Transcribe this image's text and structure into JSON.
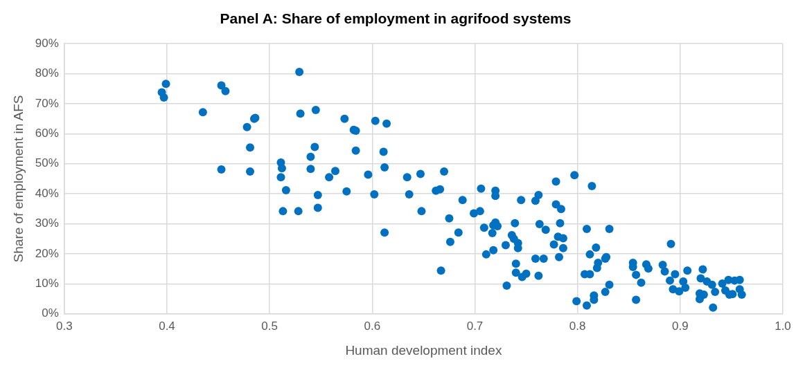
{
  "chart_data": {
    "type": "scatter",
    "title": "Panel A: Share of employment in agrifood systems",
    "xlabel": "Human development index",
    "ylabel": "Share of employment in AFS",
    "xlim": [
      0.3,
      1.0
    ],
    "xticks": [
      0.3,
      0.4,
      0.5,
      0.6,
      0.7,
      0.8,
      0.9,
      {
        "value": 1.0,
        "label": "1.0"
      }
    ],
    "ylim": [
      0,
      90
    ],
    "yticks": [
      {
        "value": 0,
        "label": "0%"
      },
      {
        "value": 10,
        "label": "10%"
      },
      {
        "value": 20,
        "label": "20%"
      },
      {
        "value": 30,
        "label": "30%"
      },
      {
        "value": 40,
        "label": "40%"
      },
      {
        "value": 50,
        "label": "50%"
      },
      {
        "value": 60,
        "label": "60%"
      },
      {
        "value": 70,
        "label": "70%"
      },
      {
        "value": 80,
        "label": "80%"
      },
      {
        "value": 90,
        "label": "90%"
      }
    ],
    "grid": true,
    "marker": "circle",
    "series": [
      {
        "color": "#0070c0",
        "x": [
          0.399,
          0.395,
          0.397,
          0.435,
          0.453,
          0.457,
          0.478,
          0.485,
          0.486,
          0.481,
          0.453,
          0.481,
          0.529,
          0.53,
          0.545,
          0.573,
          0.582,
          0.584,
          0.584,
          0.544,
          0.54,
          0.54,
          0.511,
          0.512,
          0.511,
          0.516,
          0.513,
          0.528,
          0.547,
          0.547,
          0.558,
          0.564,
          0.575,
          0.603,
          0.614,
          0.611,
          0.612,
          0.596,
          0.602,
          0.612,
          0.634,
          0.647,
          0.67,
          0.636,
          0.662,
          0.666,
          0.648,
          0.688,
          0.675,
          0.684,
          0.676,
          0.667,
          0.706,
          0.72,
          0.72,
          0.699,
          0.705,
          0.709,
          0.718,
          0.72,
          0.722,
          0.717,
          0.711,
          0.718,
          0.73,
          0.739,
          0.745,
          0.759,
          0.762,
          0.763,
          0.769,
          0.736,
          0.738,
          0.742,
          0.742,
          0.74,
          0.74,
          0.746,
          0.75,
          0.731,
          0.759,
          0.767,
          0.762,
          0.797,
          0.779,
          0.814,
          0.779,
          0.784,
          0.783,
          0.809,
          0.831,
          0.781,
          0.786,
          0.777,
          0.786,
          0.818,
          0.812,
          0.782,
          0.827,
          0.828,
          0.82,
          0.819,
          0.807,
          0.812,
          0.831,
          0.827,
          0.816,
          0.816,
          0.799,
          0.809,
          0.891,
          0.854,
          0.854,
          0.857,
          0.862,
          0.857,
          0.867,
          0.869,
          0.883,
          0.885,
          0.895,
          0.89,
          0.903,
          0.905,
          0.907,
          0.893,
          0.899,
          0.922,
          0.92,
          0.926,
          0.931,
          0.934,
          0.941,
          0.947,
          0.953,
          0.958,
          0.944,
          0.948,
          0.951,
          0.958,
          0.96,
          0.919,
          0.923,
          0.919,
          0.932
        ],
        "values": [
          76.6,
          73.8,
          72.1,
          67.2,
          76.1,
          74.2,
          62.2,
          65,
          65.3,
          55.4,
          48.1,
          47.4,
          80.6,
          66.7,
          67.9,
          65,
          61.3,
          61,
          54.4,
          55.6,
          52.3,
          48.3,
          50.4,
          48.5,
          45.5,
          41.2,
          34.2,
          34.2,
          35.3,
          39.6,
          45.5,
          47.6,
          40.8,
          64.3,
          63.4,
          54,
          48.8,
          46.4,
          39.8,
          27.1,
          45.5,
          46.6,
          47.4,
          39.8,
          41,
          41.5,
          34.2,
          37.9,
          31.8,
          27.1,
          24,
          14.4,
          41.7,
          41,
          39.3,
          33.5,
          34.2,
          28.7,
          29.5,
          30.4,
          29.2,
          26.9,
          19.8,
          21.2,
          22.9,
          30.2,
          37.9,
          37.7,
          39.6,
          29.9,
          28,
          26.2,
          25,
          23.6,
          21.9,
          16.7,
          13.7,
          12.3,
          13.4,
          9.4,
          18.4,
          18.4,
          12.7,
          46.2,
          44.1,
          42.6,
          36.5,
          34.9,
          30.2,
          28.3,
          28.3,
          25.7,
          25.2,
          23.1,
          21.9,
          22.1,
          19.8,
          18.9,
          18.4,
          18.9,
          17,
          15.3,
          13.2,
          13.2,
          9.7,
          7.3,
          6.1,
          4.7,
          4.2,
          2.8,
          23.3,
          17,
          15.6,
          13,
          10.4,
          4.7,
          16.5,
          15.1,
          16.3,
          14.1,
          13.2,
          11.1,
          10.8,
          8.7,
          14.4,
          8.2,
          7.5,
          14.8,
          11.8,
          10.8,
          9.7,
          7.3,
          10.1,
          11.3,
          11.1,
          11.3,
          7.8,
          6.4,
          6.6,
          8.2,
          6.4,
          6.8,
          6.4,
          4.9,
          2.1
        ]
      }
    ]
  }
}
